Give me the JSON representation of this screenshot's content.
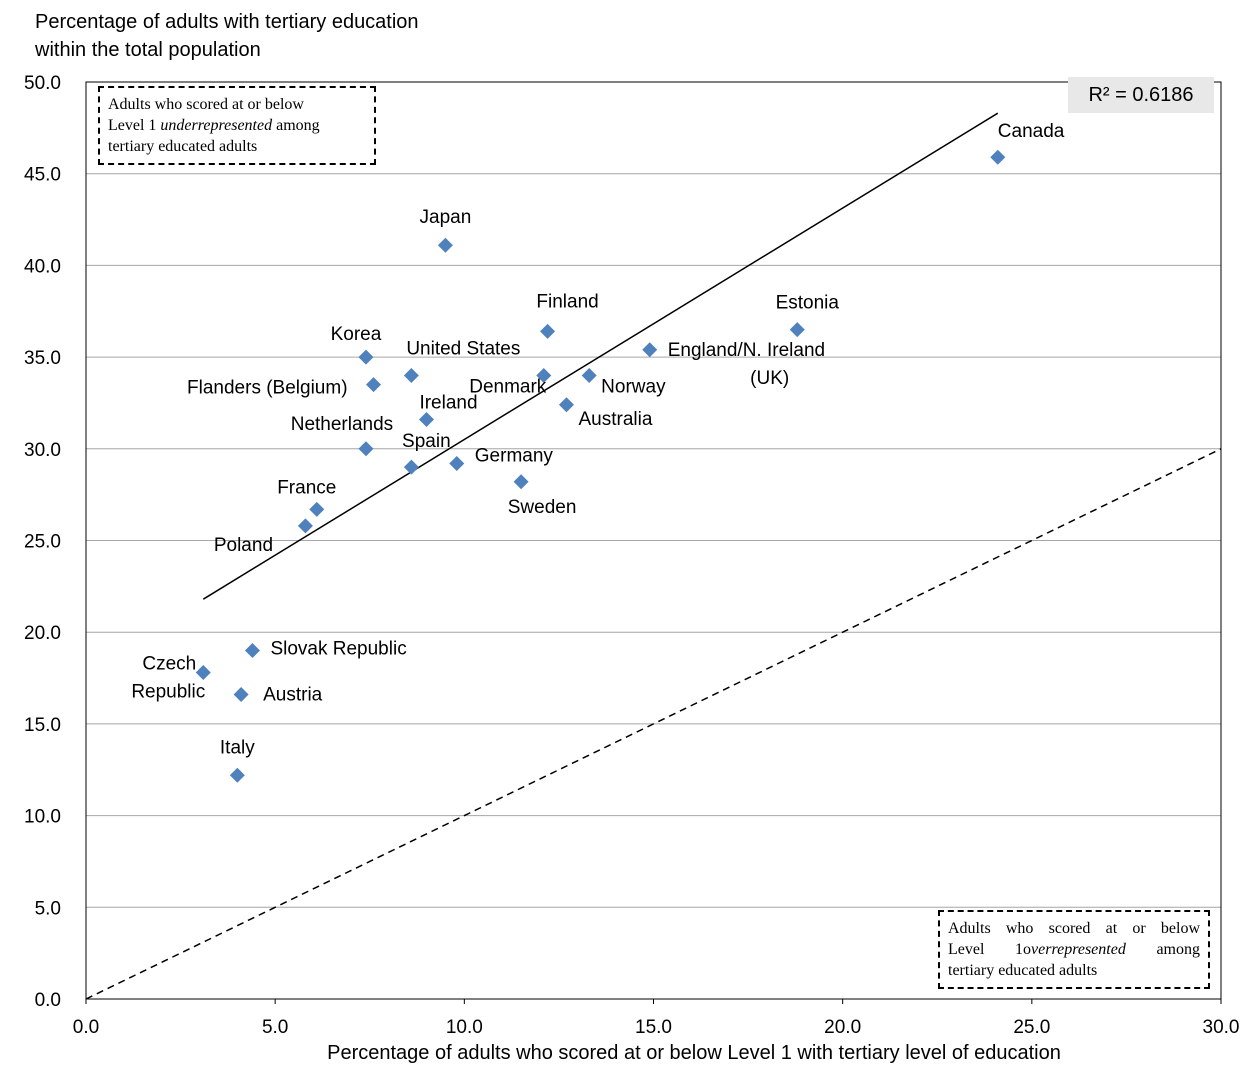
{
  "chart_data": {
    "type": "scatter",
    "ylabel_lines": [
      "Percentage of adults  with tertiary education",
      "within the total population"
    ],
    "xlabel": "Percentage of adults who scored at or below Level 1 with tertiary level of education",
    "xlim": [
      0,
      30
    ],
    "ylim": [
      0,
      50
    ],
    "x_ticks": [
      "0.0",
      "5.0",
      "10.0",
      "15.0",
      "20.0",
      "25.0",
      "30.0"
    ],
    "y_ticks": [
      "0.0",
      "5.0",
      "10.0",
      "15.0",
      "20.0",
      "25.0",
      "30.0",
      "35.0",
      "40.0",
      "45.0",
      "50.0"
    ],
    "grid": "horizontal",
    "marker_color": "#4f81bd",
    "points": [
      {
        "label": "Canada",
        "x": 24.1,
        "y": 45.9
      },
      {
        "label": "Japan",
        "x": 9.5,
        "y": 41.1
      },
      {
        "label": "Finland",
        "x": 12.2,
        "y": 36.4
      },
      {
        "label": "Estonia",
        "x": 18.8,
        "y": 36.5
      },
      {
        "label": "Korea",
        "x": 7.4,
        "y": 35.0
      },
      {
        "label": "United States",
        "x": 8.6,
        "y": 34.0
      },
      {
        "label": "England/N. Ireland (UK)",
        "x": 14.9,
        "y": 35.4
      },
      {
        "label": "Flanders (Belgium)",
        "x": 7.6,
        "y": 33.5
      },
      {
        "label": "Denmark",
        "x": 12.1,
        "y": 34.0
      },
      {
        "label": "Norway",
        "x": 13.3,
        "y": 34.0
      },
      {
        "label": "Ireland",
        "x": 9.0,
        "y": 31.6
      },
      {
        "label": "Australia",
        "x": 12.7,
        "y": 32.4
      },
      {
        "label": "Netherlands",
        "x": 7.4,
        "y": 30.0
      },
      {
        "label": "Spain",
        "x": 8.6,
        "y": 29.0
      },
      {
        "label": "Germany",
        "x": 9.8,
        "y": 29.2
      },
      {
        "label": "Sweden",
        "x": 11.5,
        "y": 28.2
      },
      {
        "label": "France",
        "x": 6.1,
        "y": 26.7
      },
      {
        "label": "Poland",
        "x": 5.8,
        "y": 25.8
      },
      {
        "label": "Slovak Republic",
        "x": 4.4,
        "y": 19.0
      },
      {
        "label": "Czech Republic",
        "x": 3.1,
        "y": 17.8
      },
      {
        "label": "Austria",
        "x": 4.1,
        "y": 16.6
      },
      {
        "label": "Italy",
        "x": 4.0,
        "y": 12.2
      }
    ],
    "trendline": {
      "x1": 3.1,
      "y1": 21.8,
      "x2": 24.1,
      "y2": 48.3
    },
    "reference_line": {
      "x1": 0,
      "y1": 0,
      "x2": 30,
      "y2": 30
    },
    "r_squared": "R² = 0.6186",
    "annotations": {
      "top_left": [
        "Adults who scored at or below",
        "Level 1 ",
        "underrepresented",
        " among",
        "tertiary educated adults"
      ],
      "bottom_right": [
        "Adults who scored at or below",
        "Level 1o",
        "verrepresented",
        "among",
        "tertiary educated adults"
      ]
    }
  }
}
